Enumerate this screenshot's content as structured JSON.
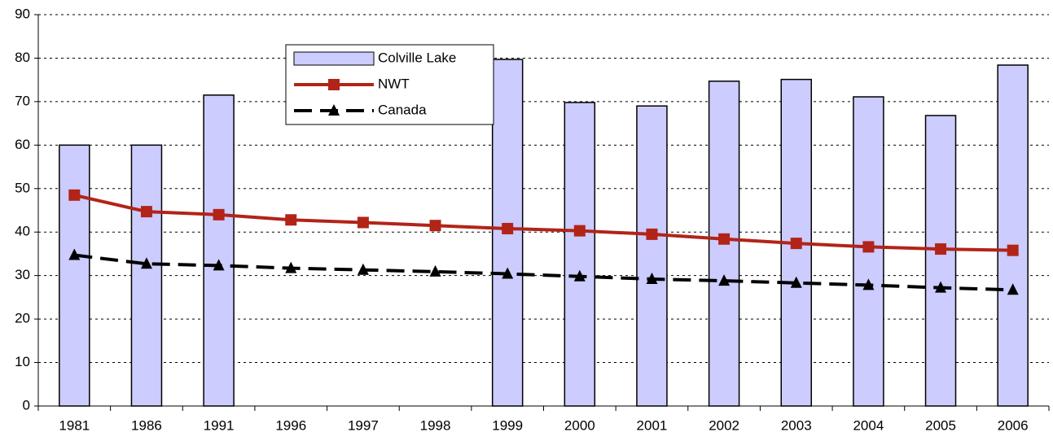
{
  "chart_data": {
    "type": "bar",
    "categories": [
      "1981",
      "1986",
      "1991",
      "1996",
      "1997",
      "1998",
      "1999",
      "2000",
      "2001",
      "2002",
      "2003",
      "2004",
      "2005",
      "2006"
    ],
    "series": [
      {
        "name": "Colville Lake",
        "type": "bar",
        "color": "#ccccff",
        "values": [
          60.0,
          60.0,
          71.5,
          null,
          null,
          null,
          79.7,
          69.8,
          69.0,
          74.7,
          75.1,
          71.1,
          66.8,
          78.4
        ]
      },
      {
        "name": "NWT",
        "type": "line",
        "color": "#b22418",
        "marker": "square",
        "dashed": false,
        "values": [
          48.5,
          44.7,
          44.0,
          42.8,
          42.2,
          41.5,
          40.8,
          40.3,
          39.5,
          38.4,
          37.4,
          36.6,
          36.1,
          35.8
        ]
      },
      {
        "name": "Canada",
        "type": "line",
        "color": "#000000",
        "marker": "triangle",
        "dashed": true,
        "values": [
          34.7,
          32.7,
          32.3,
          31.7,
          31.3,
          30.9,
          30.4,
          29.8,
          29.2,
          28.8,
          28.3,
          27.8,
          27.2,
          26.7
        ]
      }
    ],
    "ylim": [
      0,
      90
    ],
    "yticks": [
      0,
      10,
      20,
      30,
      40,
      50,
      60,
      70,
      80,
      90
    ],
    "grid": true
  }
}
